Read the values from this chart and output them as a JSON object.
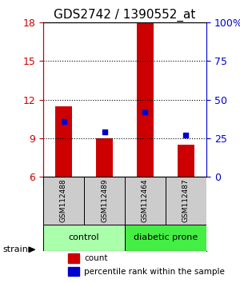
{
  "title": "GDS2742 / 1390552_at",
  "samples": [
    "GSM112488",
    "GSM112489",
    "GSM112464",
    "GSM112487"
  ],
  "bar_values": [
    11.5,
    9.0,
    18.0,
    8.5
  ],
  "blue_values": [
    10.3,
    9.5,
    11.05,
    9.25
  ],
  "ylim_left": [
    6,
    18
  ],
  "ylim_right": [
    0,
    100
  ],
  "yticks_left": [
    6,
    9,
    12,
    15,
    18
  ],
  "ytick_values_right": [
    0,
    25,
    50,
    75,
    100
  ],
  "bar_color": "#cc0000",
  "blue_color": "#0000cc",
  "bar_width": 0.4,
  "groups": [
    {
      "label": "control",
      "color": "#aaffaa",
      "samples": [
        0,
        1
      ]
    },
    {
      "label": "diabetic prone",
      "color": "#44ee44",
      "samples": [
        2,
        3
      ]
    }
  ],
  "group_box_color": "#cccccc",
  "background_color": "#ffffff",
  "title_fontsize": 11,
  "axis_label_color_left": "#cc0000",
  "axis_label_color_right": "#0000cc",
  "strain_label": "strain",
  "legend_count_label": "count",
  "legend_pct_label": "percentile rank within the sample"
}
